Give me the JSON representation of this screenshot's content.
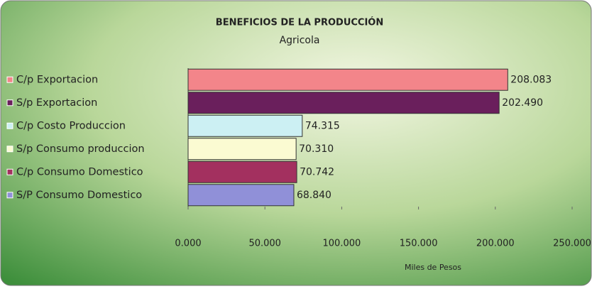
{
  "chart_data": {
    "type": "barh",
    "title": "BENEFICIOS DE LA PRODUCCIÓN",
    "subtitle": "Agricola",
    "categories": [
      "C/p Exportacion",
      "S/p Exportacion",
      "C/p Costo Produccion",
      "S/p Consumo produccion",
      "C/p Consumo Domestico",
      "S/P Consumo Domestico"
    ],
    "values": [
      208.083,
      202.49,
      74.315,
      70.31,
      70.742,
      68.84
    ],
    "value_labels": [
      "208.083",
      "202.490",
      "74.315",
      "70.310",
      "70.742",
      "68.840"
    ],
    "colors": [
      "#f3858a",
      "#6a1f5c",
      "#ccf0f3",
      "#fbfbd2",
      "#a3305f",
      "#9090d8"
    ],
    "xlabel": "Miles de Pesos",
    "xlim": [
      0,
      250
    ],
    "xticks": [
      {
        "value": 0,
        "label": "0.000"
      },
      {
        "value": 50,
        "label": "50.000"
      },
      {
        "value": 100,
        "label": "100.000"
      },
      {
        "value": 150,
        "label": "150.000"
      },
      {
        "value": 200,
        "label": "200.000"
      },
      {
        "value": 250,
        "label": "250.000"
      }
    ]
  }
}
